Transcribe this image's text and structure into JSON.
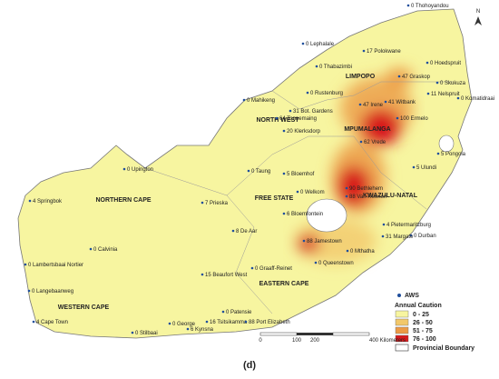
{
  "map": {
    "caption": "(d)",
    "north": "N",
    "regions": [
      "LIMPOPO",
      "NORTH WEST",
      "MPUMALANGA",
      "FREE STATE",
      "KWAZULU-NATAL",
      "NORTHERN CAPE",
      "EASTERN CAPE",
      "WESTERN CAPE"
    ],
    "stations": [
      "0 Thohoyandou",
      "0 Lephalale",
      "17 Polokwane",
      "0 Hoedspruit",
      "0 Thabazimbi",
      "47 Graskop",
      "0 Skukuza",
      "11 Nelspruit",
      "0 Komatidraai",
      "0 Rustenburg",
      "0 Mahikeng",
      "47 Irene",
      "41 Witbank",
      "31 Bot. Gardens",
      "64 Tonnemaing",
      "20 Klerksdorp",
      "100 Ermelo",
      "62 Vrede",
      "5 Pongola",
      "5 Ulundi",
      "0 Taung",
      "5 Bloemhof",
      "0 Upington",
      "0 Welkom",
      "90 Bethlehem",
      "88 Van Reenen",
      "6 Bloemfontein",
      "4 Springbok",
      "7 Prieska",
      "4 Pietermaritzburg",
      "0 Durban",
      "8 De Aar",
      "88 Jamestown",
      "31 Margate",
      "0 Calvinia",
      "0 Lambertsbaai Nortier",
      "15 Beaufort West",
      "0 Graaff-Reinet",
      "0 Queenstown",
      "0 Mthatha",
      "0 Langebaanweg",
      "4 Cape Town",
      "0 Patensie",
      "0 George",
      "16 Tsitsikamma",
      "88 Port Elizabeth",
      "6 Kynsna",
      "0 Stilbaai"
    ],
    "legend": {
      "aws": "AWS",
      "title": "Annual Caution",
      "classes": [
        {
          "label": "0 - 25",
          "color": "#f7f5a0"
        },
        {
          "label": "26 - 50",
          "color": "#f2c86a"
        },
        {
          "label": "51 - 75",
          "color": "#ec9a45"
        },
        {
          "label": "76 - 100",
          "color": "#d7191c"
        }
      ],
      "boundary": "Provincial Boundary"
    },
    "scale": {
      "ticks": [
        "0",
        "100",
        "200",
        "400 Kilometers"
      ]
    }
  }
}
